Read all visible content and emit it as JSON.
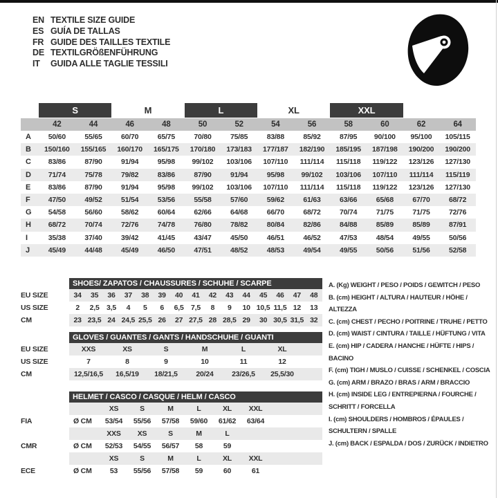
{
  "colors": {
    "accent_dark": "#3c3c3c",
    "header_gray": "#c2c2c2",
    "alt_row_gray": "#ebebeb",
    "sub_row_gray": "#e9e9e9"
  },
  "header": {
    "languages": [
      {
        "code": "EN",
        "title": "TEXTILE SIZE GUIDE"
      },
      {
        "code": "ES",
        "title": "GUÍA DE TALLAS"
      },
      {
        "code": "FR",
        "title": "GUIDE DES TAILLES TEXTILE"
      },
      {
        "code": "DE",
        "title": "TEXTILGRÖßENFÜHRUNG"
      },
      {
        "code": "IT",
        "title": "GUIDA ALLE TAGLIE TESSILI"
      }
    ],
    "helmet_icon": "full-face-helmet-icon"
  },
  "size_table": {
    "size_groups": [
      {
        "label": "S",
        "boxed": true
      },
      {
        "label": "M",
        "boxed": false
      },
      {
        "label": "L",
        "boxed": true
      },
      {
        "label": "XL",
        "boxed": false
      },
      {
        "label": "XXL",
        "boxed": true
      }
    ],
    "columns": [
      "42",
      "44",
      "46",
      "48",
      "50",
      "52",
      "54",
      "56",
      "58",
      "60",
      "62",
      "64"
    ],
    "rows": [
      {
        "label": "A",
        "values": [
          "50/60",
          "55/65",
          "60/70",
          "65/75",
          "70/80",
          "75/85",
          "83/88",
          "85/92",
          "87/95",
          "90/100",
          "95/100",
          "105/115"
        ]
      },
      {
        "label": "B",
        "values": [
          "150/160",
          "155/165",
          "160/170",
          "165/175",
          "170/180",
          "173/183",
          "177/187",
          "182/190",
          "185/195",
          "187/198",
          "190/200",
          "190/200"
        ]
      },
      {
        "label": "C",
        "values": [
          "83/86",
          "87/90",
          "91/94",
          "95/98",
          "99/102",
          "103/106",
          "107/110",
          "111/114",
          "115/118",
          "119/122",
          "123/126",
          "127/130"
        ]
      },
      {
        "label": "D",
        "values": [
          "71/74",
          "75/78",
          "79/82",
          "83/86",
          "87/90",
          "91/94",
          "95/98",
          "99/102",
          "103/106",
          "107/110",
          "111/114",
          "115/119"
        ]
      },
      {
        "label": "E",
        "values": [
          "83/86",
          "87/90",
          "91/94",
          "95/98",
          "99/102",
          "103/106",
          "107/110",
          "111/114",
          "115/118",
          "119/122",
          "123/126",
          "127/130"
        ]
      },
      {
        "label": "F",
        "values": [
          "47/50",
          "49/52",
          "51/54",
          "53/56",
          "55/58",
          "57/60",
          "59/62",
          "61/63",
          "63/66",
          "65/68",
          "67/70",
          "68/72"
        ]
      },
      {
        "label": "G",
        "values": [
          "54/58",
          "56/60",
          "58/62",
          "60/64",
          "62/66",
          "64/68",
          "66/70",
          "68/72",
          "70/74",
          "71/75",
          "71/75",
          "72/76"
        ]
      },
      {
        "label": "H",
        "values": [
          "68/72",
          "70/74",
          "72/76",
          "74/78",
          "76/80",
          "78/82",
          "80/84",
          "82/86",
          "84/88",
          "85/89",
          "85/89",
          "87/91"
        ]
      },
      {
        "label": "I",
        "values": [
          "35/38",
          "37/40",
          "39/42",
          "41/45",
          "43/47",
          "45/50",
          "46/51",
          "46/52",
          "47/53",
          "48/54",
          "49/55",
          "50/56"
        ]
      },
      {
        "label": "J",
        "values": [
          "45/49",
          "44/48",
          "45/49",
          "46/50",
          "47/51",
          "48/52",
          "48/53",
          "49/54",
          "49/55",
          "50/56",
          "51/56",
          "52/58"
        ]
      }
    ]
  },
  "shoes": {
    "title": "SHOES/ ZAPATOS / CHAUSSURES / SCHUHE / SCARPE",
    "rows": [
      {
        "label": "EU SIZE",
        "gray": true,
        "values": [
          "34",
          "35",
          "36",
          "37",
          "38",
          "39",
          "40",
          "41",
          "42",
          "43",
          "44",
          "45",
          "46",
          "47",
          "48"
        ]
      },
      {
        "label": "US SIZE",
        "gray": false,
        "values": [
          "2",
          "2,5",
          "3,5",
          "4",
          "5",
          "6",
          "6,5",
          "7,5",
          "8",
          "9",
          "10",
          "10,5",
          "11,5",
          "12",
          "13"
        ]
      },
      {
        "label": "CM",
        "gray": true,
        "values": [
          "23",
          "23,5",
          "24",
          "24,5",
          "25,5",
          "26",
          "27",
          "27,5",
          "28",
          "28,5",
          "29",
          "30",
          "30,5",
          "31,5",
          "32"
        ]
      }
    ]
  },
  "gloves": {
    "title": "GLOVES / GUANTES / GANTS / HANDSCHUHE / GUANTI",
    "rows": [
      {
        "label": "EU SIZE",
        "gray": true,
        "values": [
          "XXS",
          "XS",
          "S",
          "M",
          "L",
          "XL"
        ]
      },
      {
        "label": "US SIZE",
        "gray": false,
        "values": [
          "7",
          "8",
          "9",
          "10",
          "11",
          "12"
        ]
      },
      {
        "label": "CM",
        "gray": true,
        "values": [
          "12,5/16,5",
          "16,5/19",
          "18/21,5",
          "20/24",
          "23/26,5",
          "25,5/30"
        ]
      }
    ]
  },
  "helmet": {
    "title": "HELMET / CASCO / CASQUE / HELM / CASCO",
    "diameter_label": "Ø CM",
    "standards": [
      {
        "label": "FIA",
        "sizes": [
          "XS",
          "S",
          "M",
          "L",
          "XL",
          "XXL"
        ],
        "values": [
          "53/54",
          "55/56",
          "57/58",
          "59/60",
          "61/62",
          "63/64"
        ]
      },
      {
        "label": "CMR",
        "sizes": [
          "XXS",
          "XS",
          "S",
          "M",
          "L",
          ""
        ],
        "values": [
          "52/53",
          "54/55",
          "56/57",
          "58",
          "59",
          ""
        ]
      },
      {
        "label": "ECE",
        "sizes": [
          "XS",
          "S",
          "M",
          "L",
          "XL",
          "XXL"
        ],
        "values": [
          "53",
          "55/56",
          "57/58",
          "59",
          "60",
          "61"
        ]
      }
    ]
  },
  "legend": {
    "items": [
      "A. (Kg) WEIGHT / PESO / POIDS / GEWITCH / PESO",
      "B. (cm) HEIGHT / ALTURA / HAUTEUR / HÖHE / ALTEZZA",
      "C. (cm) CHEST / PECHO / POITRINE / TRUHE / PETTO",
      "D. (cm) WAIST / CINTURA / TAILLE / HÜFTUNG / VITA",
      "E. (cm) HIP / CADERA / HANCHE / HÜFTE / HIPS / BACINO",
      "F. (cm) TIGH / MUSLO / CUISSE / SCHENKEL / COSCIA",
      "G. (cm) ARM / BRAZO / BRAS / ARM / BRACCIO",
      "H. (cm) INSIDE LEG / ENTREPIERNA / FOURCHE / SCHRITT / FORCELLA",
      "I. (cm) SHOULDERS / HOMBROS / ÉPAULES / SCHULTERN / SPALLE",
      "J. (cm) BACK / ESPALDA / DOS / ZURÜCK / INDIETRO"
    ]
  }
}
